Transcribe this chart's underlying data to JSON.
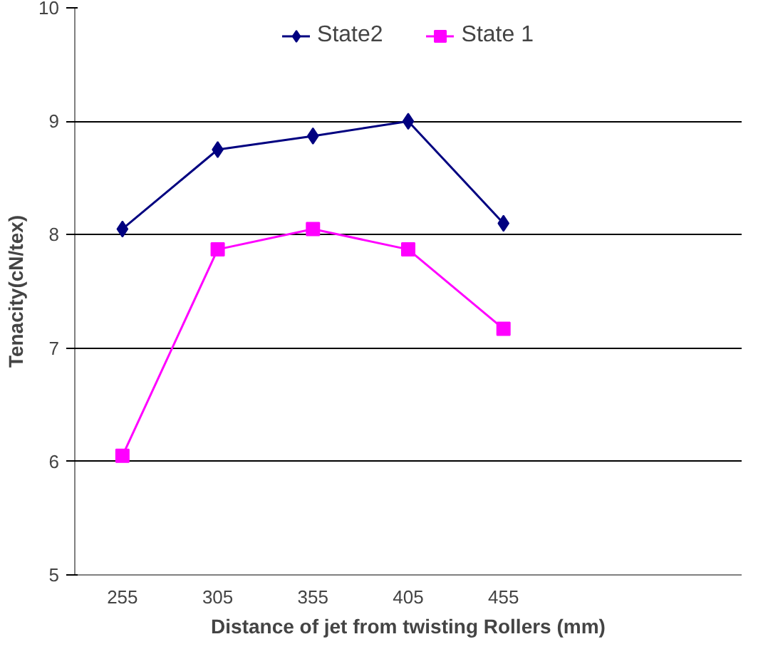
{
  "chart_data": {
    "type": "line",
    "xlabel": "Distance of jet from twisting Rollers (mm)",
    "ylabel": "Tenacity(cN/tex)",
    "categories": [
      "255",
      "305",
      "355",
      "405",
      "455",
      null,
      null
    ],
    "series": [
      {
        "name": "State2",
        "color": "#000080",
        "marker": "diamond",
        "values": [
          8.05,
          8.75,
          8.87,
          9.0,
          8.1,
          null,
          null
        ]
      },
      {
        "name": "State 1",
        "color": "#ff00ff",
        "marker": "square",
        "values": [
          6.05,
          7.87,
          8.05,
          7.87,
          7.17,
          null,
          null
        ]
      }
    ],
    "ylim": [
      5,
      10
    ],
    "yticks": [
      5,
      6,
      7,
      8,
      9,
      10
    ],
    "grid": "y",
    "legend": "top"
  }
}
